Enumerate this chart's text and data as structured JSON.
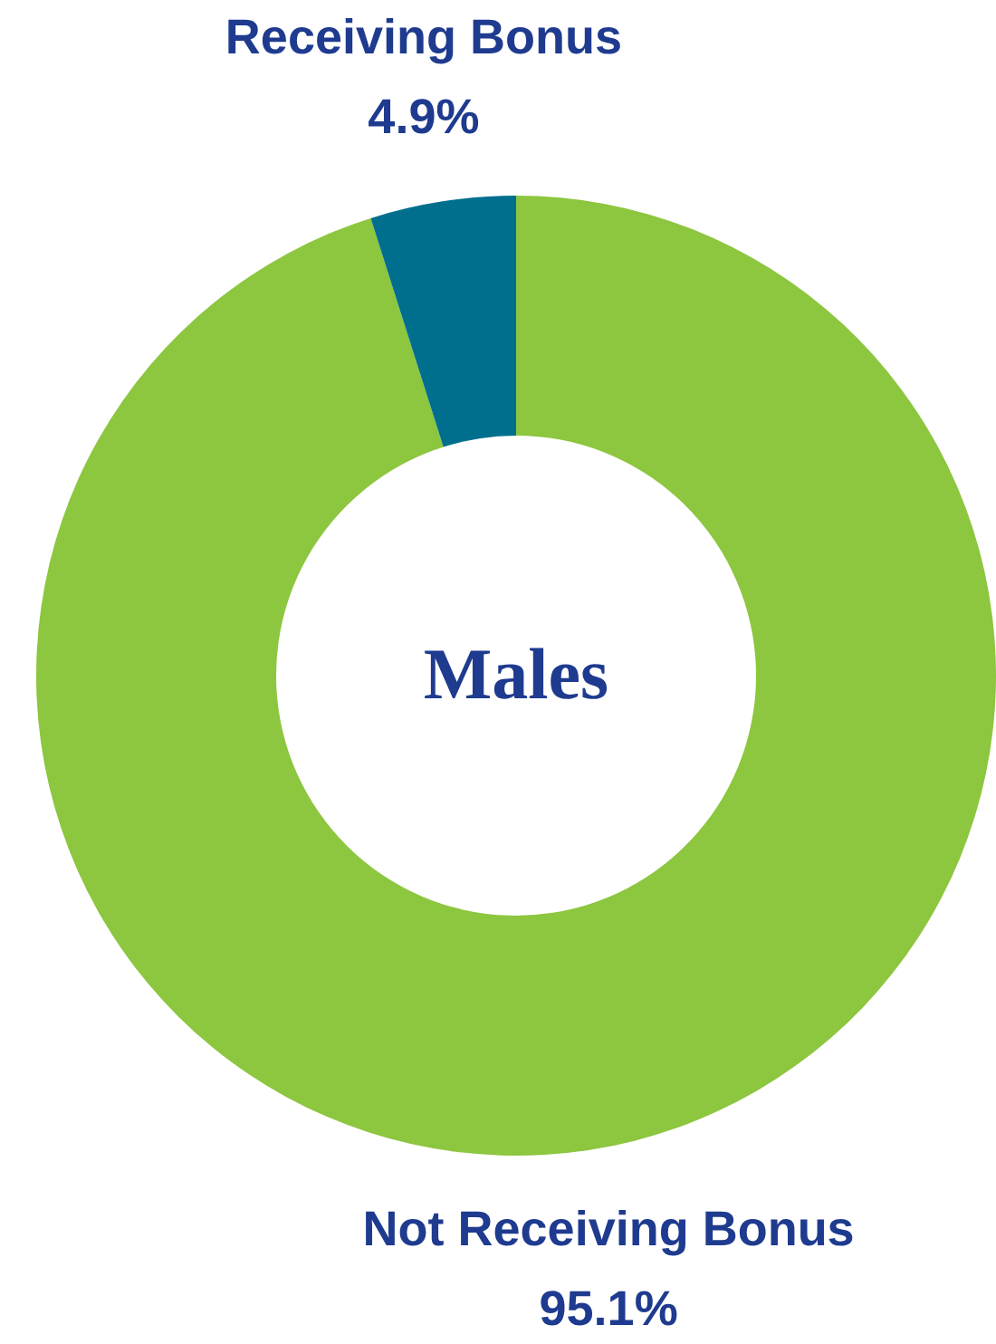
{
  "chart_data": {
    "type": "donut",
    "title": "Males",
    "categories": [
      "Not Receiving Bonus",
      "Receiving Bonus"
    ],
    "values": [
      95.1,
      4.9
    ],
    "colors": [
      "#8dc63f",
      "#006f8e"
    ],
    "value_labels": [
      "95.1%",
      "4.9%"
    ]
  }
}
